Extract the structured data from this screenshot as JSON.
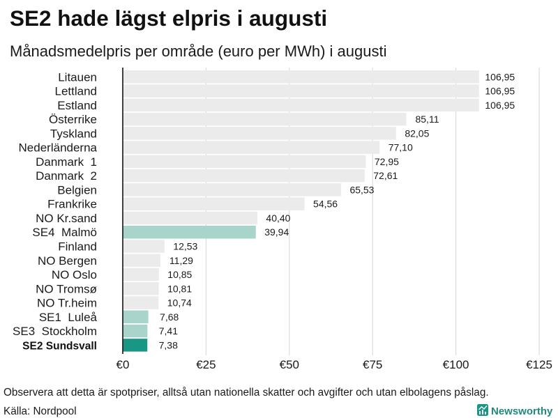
{
  "chart_data": {
    "type": "bar",
    "orientation": "horizontal",
    "title": "SE2 hade lägst elpris i augusti",
    "subtitle": "Månadsmedelpris per område (euro per MWh) i augusti",
    "xlabel": "",
    "ylabel": "",
    "categories": [
      "Litauen",
      "Lettland",
      "Estland",
      "Österrike",
      "Tyskland",
      "Nederländerna",
      "Danmark  1",
      "Danmark  2",
      "Belgien",
      "Frankrike",
      "NO Kr.sand",
      "SE4  Malmö",
      "Finland",
      "NO Bergen",
      "NO Oslo",
      "NO Tromsø",
      "NO Tr.heim",
      "SE1  Luleå",
      "SE3  Stockholm",
      "SE2 Sundsvall"
    ],
    "values": [
      106.95,
      106.95,
      106.95,
      85.11,
      82.05,
      77.1,
      72.95,
      72.61,
      65.53,
      54.56,
      40.4,
      39.94,
      12.53,
      11.29,
      10.85,
      10.81,
      10.74,
      7.68,
      7.41,
      7.38
    ],
    "value_labels": [
      "106,95",
      "106,95",
      "106,95",
      "85,11",
      "82,05",
      "77,10",
      "72,95",
      "72,61",
      "65,53",
      "54,56",
      "40,40",
      "39,94",
      "12,53",
      "11,29",
      "10,85",
      "10,81",
      "10,74",
      "7,68",
      "7,41",
      "7,38"
    ],
    "x_ticks": [
      0,
      25,
      50,
      75,
      100,
      125
    ],
    "x_tick_labels": [
      "€0",
      "€25",
      "€50",
      "€75",
      "€100",
      "€125"
    ],
    "xlim": [
      0,
      125
    ],
    "grid": "vertical",
    "legend": "none",
    "bar_colors": [
      "#ebebeb",
      "#ebebeb",
      "#ebebeb",
      "#ebebeb",
      "#ebebeb",
      "#ebebeb",
      "#ebebeb",
      "#ebebeb",
      "#ebebeb",
      "#ebebeb",
      "#ebebeb",
      "#a8d4cb",
      "#ebebeb",
      "#ebebeb",
      "#ebebeb",
      "#ebebeb",
      "#ebebeb",
      "#a8d4cb",
      "#a8d4cb",
      "#1a9685"
    ],
    "bold_label_index": 19
  },
  "footer": {
    "note": "Observera att detta är spotpriser, alltså utan nationella skatter och avgifter och utan elbolagens påslag.",
    "source": "Källa: Nordpool"
  },
  "logo": {
    "text": "Newsworthy",
    "icon": "newsworthy-chart-icon"
  }
}
